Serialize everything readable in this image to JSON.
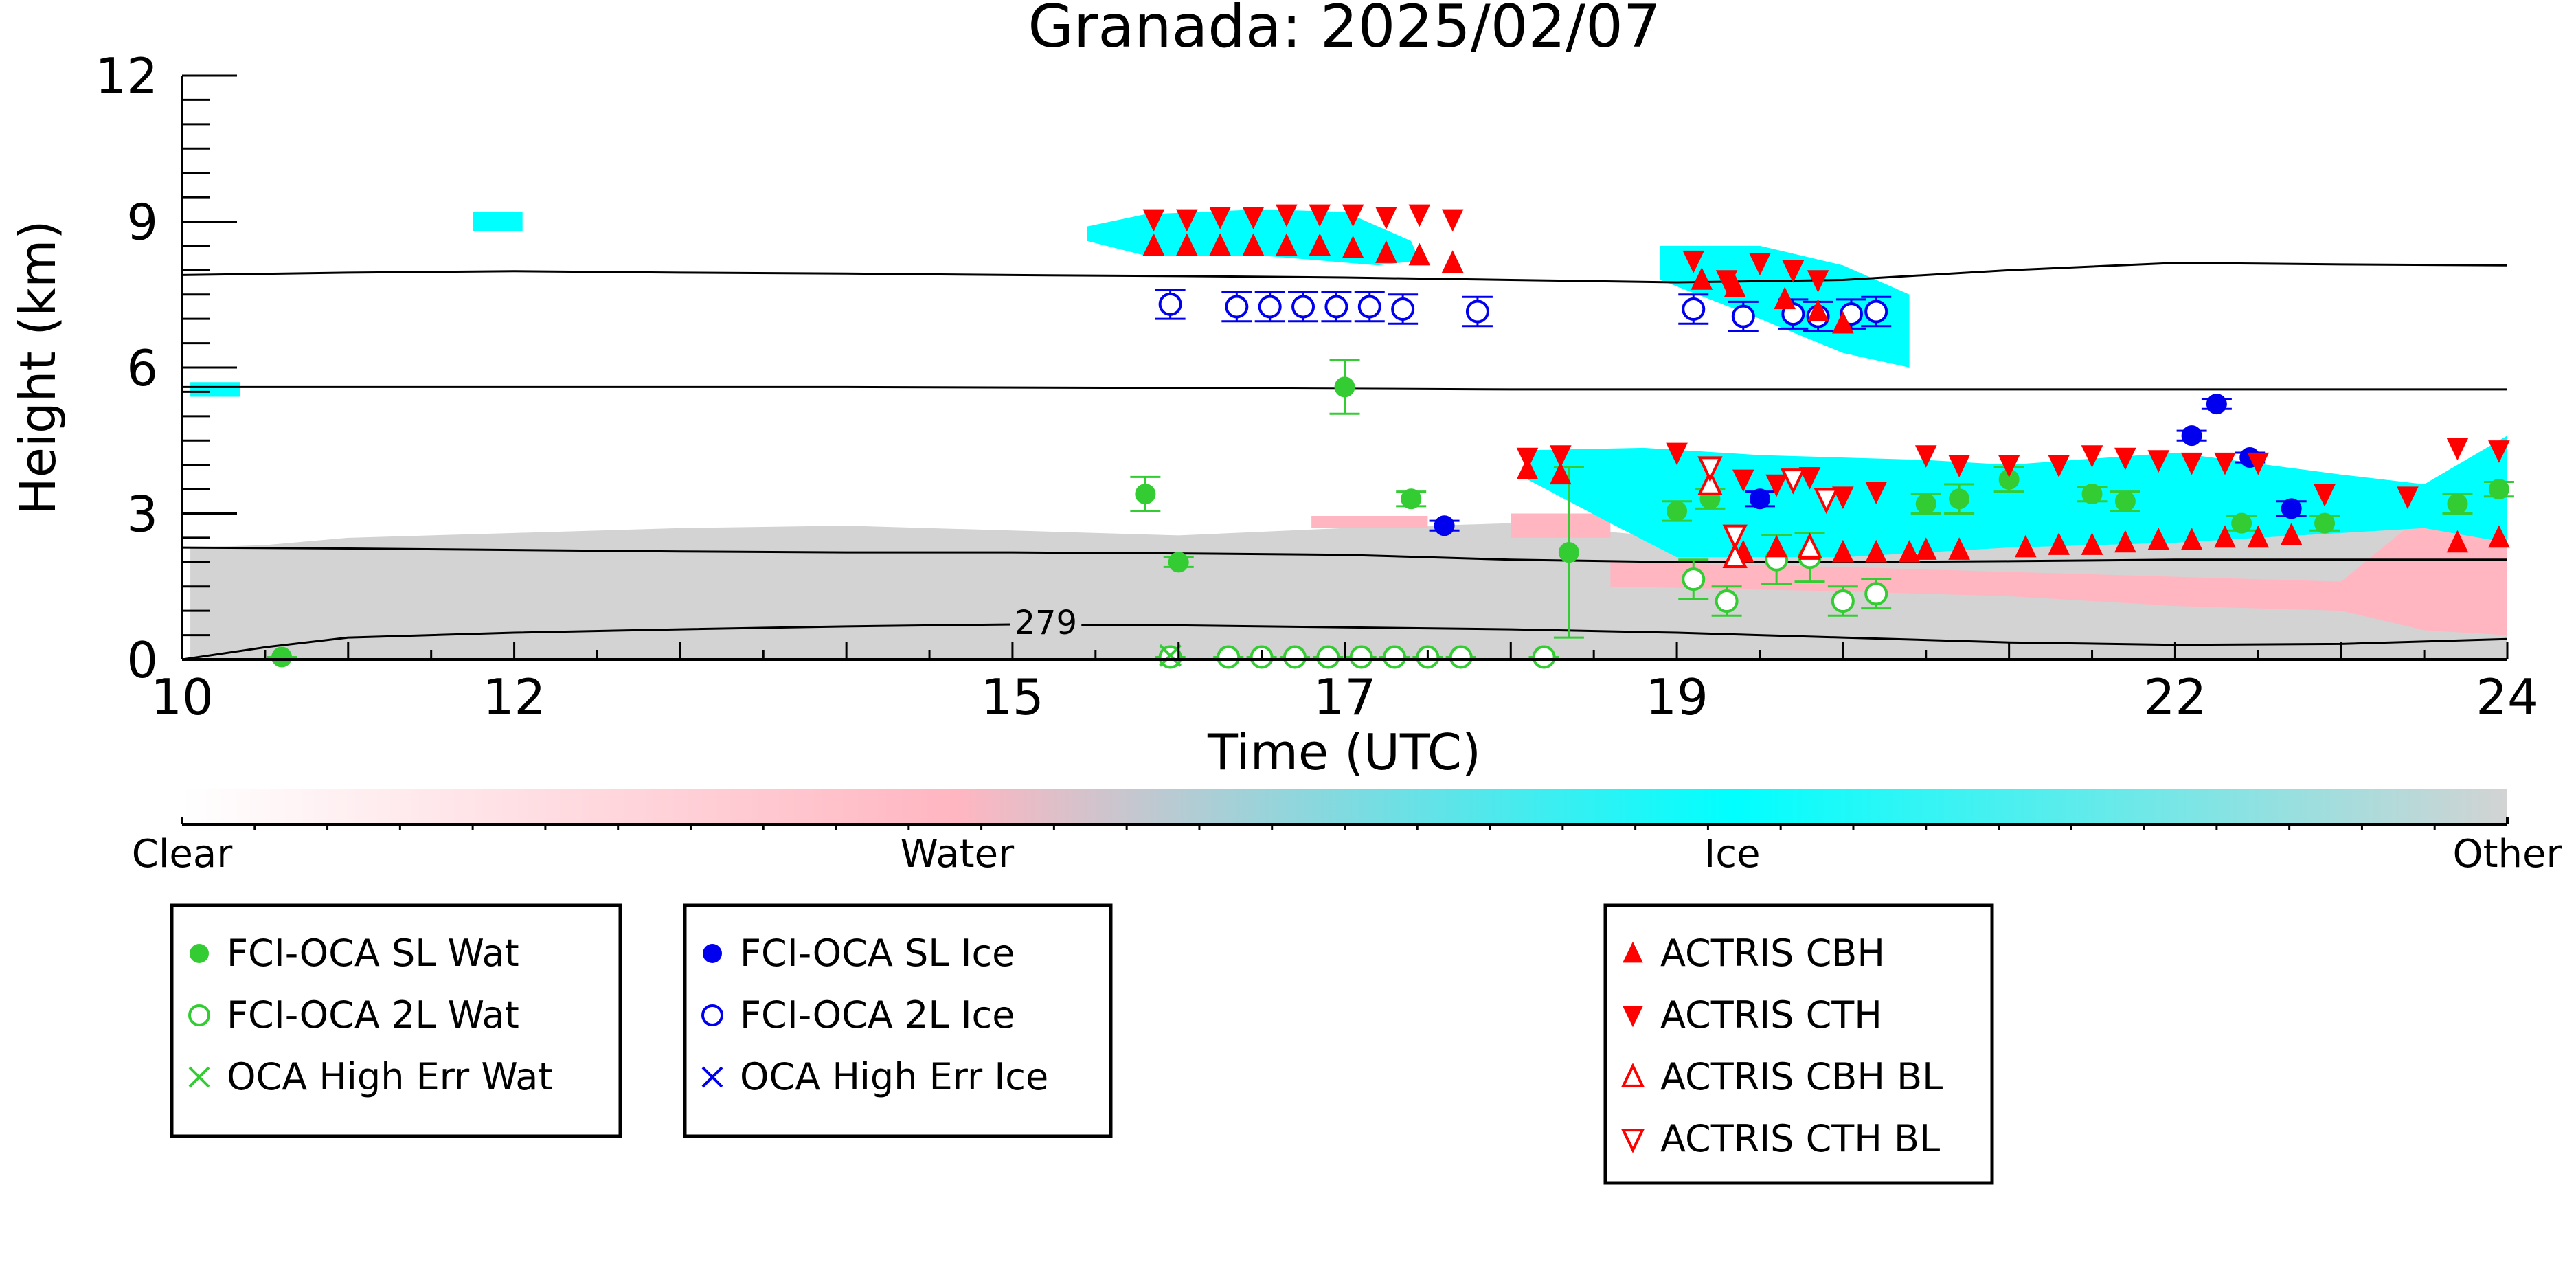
{
  "chart_data": {
    "type": "scatter",
    "title": "Granada: 2025/02/07",
    "xlabel": "Time (UTC)",
    "ylabel": "Height (km)",
    "xlim": [
      10,
      24
    ],
    "ylim": [
      0,
      12
    ],
    "x_ticks": [
      10,
      12,
      15,
      17,
      19,
      22,
      24
    ],
    "y_ticks": [
      0,
      3,
      6,
      9,
      12
    ],
    "grid": false,
    "temperature_contours": [
      {
        "label": "",
        "x": [
          10,
          11,
          12,
          13,
          14,
          15,
          16,
          17,
          18,
          19,
          20,
          21,
          22,
          23,
          24
        ],
        "y": [
          7.9,
          7.95,
          7.98,
          7.95,
          7.93,
          7.9,
          7.88,
          7.85,
          7.8,
          7.75,
          7.8,
          8.0,
          8.15,
          8.12,
          8.1
        ]
      },
      {
        "label": "",
        "x": [
          10,
          12,
          14,
          16,
          18,
          20,
          22,
          24
        ],
        "y": [
          5.6,
          5.6,
          5.6,
          5.58,
          5.55,
          5.55,
          5.55,
          5.55
        ]
      },
      {
        "label": "",
        "x": [
          10,
          11,
          12,
          13,
          14,
          15,
          16,
          17,
          18,
          19,
          20,
          21,
          22,
          23,
          24
        ],
        "y": [
          2.3,
          2.28,
          2.25,
          2.22,
          2.2,
          2.2,
          2.18,
          2.15,
          2.05,
          2.0,
          2.0,
          2.02,
          2.05,
          2.05,
          2.05
        ]
      },
      {
        "label": "279",
        "x": [
          10,
          10.5,
          11,
          12,
          13,
          14,
          15,
          16,
          17,
          18,
          19,
          20,
          21,
          22,
          23,
          24
        ],
        "y": [
          0.0,
          0.25,
          0.45,
          0.55,
          0.62,
          0.68,
          0.72,
          0.7,
          0.66,
          0.62,
          0.55,
          0.45,
          0.35,
          0.3,
          0.32,
          0.42
        ]
      }
    ],
    "series": [
      {
        "name": "FCI-OCA SL Wat",
        "marker": "filled-circle",
        "color": "#33cc33",
        "points": [
          [
            10.6,
            0.05,
            0
          ],
          [
            15.8,
            3.4,
            0.35
          ],
          [
            16.0,
            2.0,
            0.1
          ],
          [
            17.0,
            5.6,
            0.55
          ],
          [
            17.4,
            3.3,
            0.15
          ],
          [
            17.7,
            0.05,
            0
          ],
          [
            18.2,
            0.05,
            0
          ],
          [
            18.35,
            2.2,
            1.75
          ],
          [
            19.0,
            3.05,
            0.2
          ],
          [
            19.2,
            3.3,
            0.2
          ],
          [
            20.5,
            3.2,
            0.2
          ],
          [
            20.7,
            3.3,
            0.3
          ],
          [
            21.0,
            3.7,
            0.25
          ],
          [
            21.5,
            3.4,
            0.15
          ],
          [
            21.7,
            3.25,
            0.2
          ],
          [
            22.4,
            2.8,
            0.15
          ],
          [
            22.9,
            2.8,
            0.15
          ],
          [
            23.7,
            3.2,
            0.2
          ],
          [
            23.95,
            3.5,
            0.15
          ]
        ]
      },
      {
        "name": "FCI-OCA 2L Wat",
        "marker": "open-circle",
        "color": "#33cc33",
        "points": [
          [
            15.95,
            0.05,
            0
          ],
          [
            16.3,
            0.05,
            0
          ],
          [
            16.5,
            0.05,
            0
          ],
          [
            16.7,
            0.05,
            0
          ],
          [
            16.9,
            0.05,
            0
          ],
          [
            17.1,
            0.05,
            0
          ],
          [
            17.3,
            0.05,
            0
          ],
          [
            17.5,
            0.05,
            0
          ],
          [
            17.7,
            0.05,
            0
          ],
          [
            18.2,
            0.05,
            0
          ],
          [
            19.1,
            1.65,
            0.4
          ],
          [
            19.3,
            1.2,
            0.3
          ],
          [
            19.6,
            2.05,
            0.5
          ],
          [
            19.8,
            2.1,
            0.5
          ],
          [
            20.0,
            1.2,
            0.3
          ],
          [
            20.2,
            1.35,
            0.3
          ]
        ]
      },
      {
        "name": "OCA High Err Wat",
        "marker": "x",
        "color": "#33cc33",
        "points": [
          [
            15.95,
            0.08,
            0
          ]
        ]
      },
      {
        "name": "FCI-OCA SL Ice",
        "marker": "filled-circle",
        "color": "#0000ee",
        "points": [
          [
            17.6,
            2.75,
            0.1
          ],
          [
            19.5,
            3.3,
            0.15
          ],
          [
            22.1,
            4.6,
            0.1
          ],
          [
            22.25,
            5.25,
            0.1
          ],
          [
            22.45,
            4.15,
            0.1
          ],
          [
            22.7,
            3.1,
            0.15
          ]
        ]
      },
      {
        "name": "FCI-OCA 2L Ice",
        "marker": "open-circle",
        "color": "#0000ee",
        "points": [
          [
            15.95,
            7.3,
            0.3
          ],
          [
            16.35,
            7.25,
            0.3
          ],
          [
            16.55,
            7.25,
            0.3
          ],
          [
            16.75,
            7.25,
            0.3
          ],
          [
            16.95,
            7.25,
            0.3
          ],
          [
            17.15,
            7.25,
            0.3
          ],
          [
            17.35,
            7.2,
            0.3
          ],
          [
            17.8,
            7.15,
            0.3
          ],
          [
            19.1,
            7.2,
            0.3
          ],
          [
            19.4,
            7.05,
            0.3
          ],
          [
            19.7,
            7.1,
            0.3
          ],
          [
            19.85,
            7.05,
            0.3
          ],
          [
            20.05,
            7.1,
            0.3
          ],
          [
            20.2,
            7.15,
            0.3
          ]
        ]
      },
      {
        "name": "OCA High Err Ice",
        "marker": "x",
        "color": "#0000ee",
        "points": []
      },
      {
        "name": "ACTRIS CBH",
        "marker": "triangle-up",
        "color": "#ff0000",
        "points": [
          [
            15.85,
            8.5,
            0
          ],
          [
            16.05,
            8.5,
            0
          ],
          [
            16.25,
            8.5,
            0
          ],
          [
            16.45,
            8.5,
            0
          ],
          [
            16.65,
            8.5,
            0
          ],
          [
            16.85,
            8.5,
            0
          ],
          [
            17.05,
            8.45,
            0
          ],
          [
            17.25,
            8.35,
            0
          ],
          [
            17.45,
            8.3,
            0
          ],
          [
            17.65,
            8.15,
            0
          ],
          [
            18.1,
            3.9,
            0
          ],
          [
            18.3,
            3.8,
            0
          ],
          [
            19.15,
            7.8,
            0
          ],
          [
            19.35,
            7.65,
            0
          ],
          [
            19.65,
            7.4,
            0
          ],
          [
            19.85,
            7.15,
            0
          ],
          [
            20.0,
            6.9,
            0
          ],
          [
            19.4,
            2.2,
            0
          ],
          [
            19.6,
            2.3,
            0
          ],
          [
            19.8,
            2.25,
            0
          ],
          [
            20.0,
            2.2,
            0
          ],
          [
            20.2,
            2.2,
            0
          ],
          [
            20.4,
            2.2,
            0
          ],
          [
            20.5,
            2.25,
            0
          ],
          [
            20.7,
            2.25,
            0
          ],
          [
            21.1,
            2.3,
            0
          ],
          [
            21.3,
            2.35,
            0
          ],
          [
            21.5,
            2.35,
            0
          ],
          [
            21.7,
            2.4,
            0
          ],
          [
            21.9,
            2.45,
            0
          ],
          [
            22.1,
            2.45,
            0
          ],
          [
            22.3,
            2.5,
            0
          ],
          [
            22.5,
            2.5,
            0
          ],
          [
            22.7,
            2.55,
            0
          ],
          [
            23.7,
            2.4,
            0
          ],
          [
            23.95,
            2.5,
            0
          ]
        ]
      },
      {
        "name": "ACTRIS CTH",
        "marker": "triangle-down",
        "color": "#ff0000",
        "points": [
          [
            15.85,
            9.05,
            0
          ],
          [
            16.05,
            9.05,
            0
          ],
          [
            16.25,
            9.1,
            0
          ],
          [
            16.45,
            9.1,
            0
          ],
          [
            16.65,
            9.15,
            0
          ],
          [
            16.85,
            9.15,
            0
          ],
          [
            17.05,
            9.15,
            0
          ],
          [
            17.25,
            9.1,
            0
          ],
          [
            17.45,
            9.15,
            0
          ],
          [
            17.65,
            9.05,
            0
          ],
          [
            18.1,
            4.15,
            0
          ],
          [
            18.3,
            4.2,
            0
          ],
          [
            19.1,
            8.2,
            0
          ],
          [
            19.3,
            7.8,
            0
          ],
          [
            19.5,
            8.15,
            0
          ],
          [
            19.7,
            8.0,
            0
          ],
          [
            19.85,
            7.8,
            0
          ],
          [
            19.0,
            4.25,
            0
          ],
          [
            19.4,
            3.7,
            0
          ],
          [
            19.6,
            3.6,
            0
          ],
          [
            19.8,
            3.75,
            0
          ],
          [
            20.0,
            3.35,
            0
          ],
          [
            20.2,
            3.45,
            0
          ],
          [
            20.5,
            4.2,
            0
          ],
          [
            20.7,
            4.0,
            0
          ],
          [
            21.0,
            4.0,
            0
          ],
          [
            21.3,
            4.0,
            0
          ],
          [
            21.5,
            4.2,
            0
          ],
          [
            21.7,
            4.15,
            0
          ],
          [
            21.9,
            4.1,
            0
          ],
          [
            22.1,
            4.05,
            0
          ],
          [
            22.3,
            4.05,
            0
          ],
          [
            22.5,
            4.05,
            0
          ],
          [
            22.9,
            3.4,
            0
          ],
          [
            23.4,
            3.35,
            0
          ],
          [
            23.7,
            4.35,
            0
          ],
          [
            23.95,
            4.3,
            0
          ]
        ]
      },
      {
        "name": "ACTRIS CBH BL",
        "marker": "open-triangle-up",
        "color": "#ff0000",
        "points": [
          [
            19.35,
            2.1,
            0
          ],
          [
            19.8,
            2.3,
            0
          ],
          [
            19.2,
            3.6,
            0
          ]
        ]
      },
      {
        "name": "ACTRIS CTH BL",
        "marker": "open-triangle-down",
        "color": "#ff0000",
        "points": [
          [
            19.2,
            3.95,
            0
          ],
          [
            19.35,
            2.55,
            0
          ],
          [
            19.7,
            3.7,
            0
          ],
          [
            19.9,
            3.3,
            0
          ]
        ]
      }
    ],
    "legends": [
      [
        "FCI-OCA SL Wat",
        "FCI-OCA 2L Wat",
        "OCA High Err Wat"
      ],
      [
        "FCI-OCA SL Ice",
        "FCI-OCA 2L Ice",
        "OCA High Err Ice"
      ],
      [
        "ACTRIS CBH",
        "ACTRIS CTH",
        "ACTRIS CBH BL",
        "ACTRIS CTH BL"
      ]
    ],
    "colorbar": {
      "labels": [
        "Clear",
        "Water",
        "Ice",
        "Other"
      ],
      "colors": [
        "#ffffff",
        "#ffb6c1",
        "#00ffff",
        "#d3d3d3"
      ]
    },
    "classification_regions": [
      {
        "class": "Other",
        "color": "#d3d3d3",
        "x": [
          10.05,
          10.5,
          11,
          12,
          13,
          14,
          15,
          16,
          17,
          18,
          19,
          20,
          21,
          22,
          23,
          24,
          24,
          10.05
        ],
        "y": [
          2.3,
          2.35,
          2.5,
          2.6,
          2.7,
          2.75,
          2.65,
          2.55,
          2.7,
          2.8,
          2.5,
          2.4,
          2.6,
          2.7,
          2.8,
          2.9,
          0,
          0
        ]
      },
      {
        "class": "Water",
        "color": "#ffb6c1",
        "x": [
          16.8,
          17.5,
          17.5,
          16.8
        ],
        "y": [
          2.95,
          2.95,
          2.7,
          2.7
        ]
      },
      {
        "class": "Water",
        "color": "#ffb6c1",
        "x": [
          18.0,
          18.6,
          18.6,
          18.0
        ],
        "y": [
          3.0,
          3.0,
          2.5,
          2.5
        ]
      },
      {
        "class": "Water",
        "color": "#ffb6c1",
        "x": [
          18.6,
          20.0,
          21.0,
          22.0,
          23.0,
          23.5,
          24.0,
          24.0,
          23.5,
          23.0,
          22.0,
          21.0,
          20.0,
          18.6
        ],
        "y": [
          2.0,
          1.9,
          1.8,
          1.7,
          1.6,
          3.0,
          3.0,
          0.5,
          0.6,
          1.0,
          1.1,
          1.3,
          1.4,
          1.5
        ]
      },
      {
        "class": "Ice",
        "color": "#00ffff",
        "x": [
          15.45,
          15.8,
          16.5,
          17.0,
          17.4,
          17.45,
          17.2,
          16.5,
          15.8,
          15.45
        ],
        "y": [
          8.9,
          9.15,
          9.25,
          9.2,
          8.6,
          8.2,
          8.1,
          8.3,
          8.3,
          8.6
        ]
      },
      {
        "class": "Ice",
        "color": "#00ffff",
        "x": [
          18.9,
          19.5,
          20.0,
          20.4,
          20.4,
          20.0,
          19.5,
          18.9
        ],
        "y": [
          8.5,
          8.5,
          8.1,
          7.5,
          6.0,
          6.3,
          7.0,
          7.8
        ]
      },
      {
        "class": "Ice",
        "color": "#00ffff",
        "x": [
          18.1,
          18.8,
          19.5,
          20.5,
          21.0,
          22.0,
          23.0,
          23.5,
          24.0,
          24.0,
          23.5,
          23.0,
          22.0,
          21.0,
          20.0,
          19.0,
          18.6,
          18.1
        ],
        "y": [
          4.3,
          4.35,
          4.2,
          4.1,
          4.0,
          4.25,
          3.8,
          3.6,
          4.6,
          2.4,
          2.7,
          2.6,
          2.4,
          2.3,
          2.1,
          2.1,
          2.8,
          3.7
        ]
      },
      {
        "class": "Ice",
        "color": "#00ffff",
        "x": [
          11.75,
          12.05,
          12.05,
          11.75
        ],
        "y": [
          9.2,
          9.2,
          8.8,
          8.8
        ]
      },
      {
        "class": "Ice",
        "color": "#00ffff",
        "x": [
          10.05,
          10.35,
          10.35,
          10.05
        ],
        "y": [
          5.7,
          5.7,
          5.4,
          5.4
        ]
      }
    ]
  }
}
